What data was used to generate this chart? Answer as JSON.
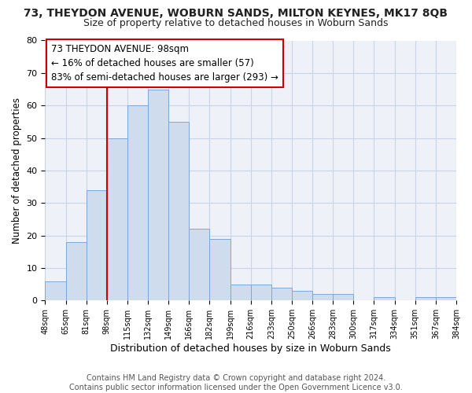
{
  "title": "73, THEYDON AVENUE, WOBURN SANDS, MILTON KEYNES, MK17 8QB",
  "subtitle": "Size of property relative to detached houses in Woburn Sands",
  "xlabel": "Distribution of detached houses by size in Woburn Sands",
  "ylabel": "Number of detached properties",
  "bar_values": [
    6,
    18,
    34,
    50,
    60,
    65,
    55,
    22,
    19,
    5,
    5,
    4,
    3,
    2,
    2,
    0,
    1,
    0,
    1,
    1
  ],
  "bin_labels": [
    "48sqm",
    "65sqm",
    "81sqm",
    "98sqm",
    "115sqm",
    "132sqm",
    "149sqm",
    "166sqm",
    "182sqm",
    "199sqm",
    "216sqm",
    "233sqm",
    "250sqm",
    "266sqm",
    "283sqm",
    "300sqm",
    "317sqm",
    "334sqm",
    "351sqm",
    "367sqm",
    "384sqm"
  ],
  "bar_color": "#cfdcee",
  "bar_edge_color": "#7da7d9",
  "vline_color": "#cc0000",
  "annotation_line1": "73 THEYDON AVENUE: 98sqm",
  "annotation_line2": "← 16% of detached houses are smaller (57)",
  "annotation_line3": "83% of semi-detached houses are larger (293) →",
  "annotation_box_color": "#ffffff",
  "annotation_box_edge": "#cc0000",
  "ylim": [
    0,
    80
  ],
  "yticks": [
    0,
    10,
    20,
    30,
    40,
    50,
    60,
    70,
    80
  ],
  "footer_text": "Contains HM Land Registry data © Crown copyright and database right 2024.\nContains public sector information licensed under the Open Government Licence v3.0.",
  "title_fontsize": 10,
  "subtitle_fontsize": 9,
  "xlabel_fontsize": 9,
  "ylabel_fontsize": 8.5,
  "footer_fontsize": 7,
  "annotation_fontsize": 8.5,
  "tick_fontsize": 7,
  "ytick_fontsize": 8
}
